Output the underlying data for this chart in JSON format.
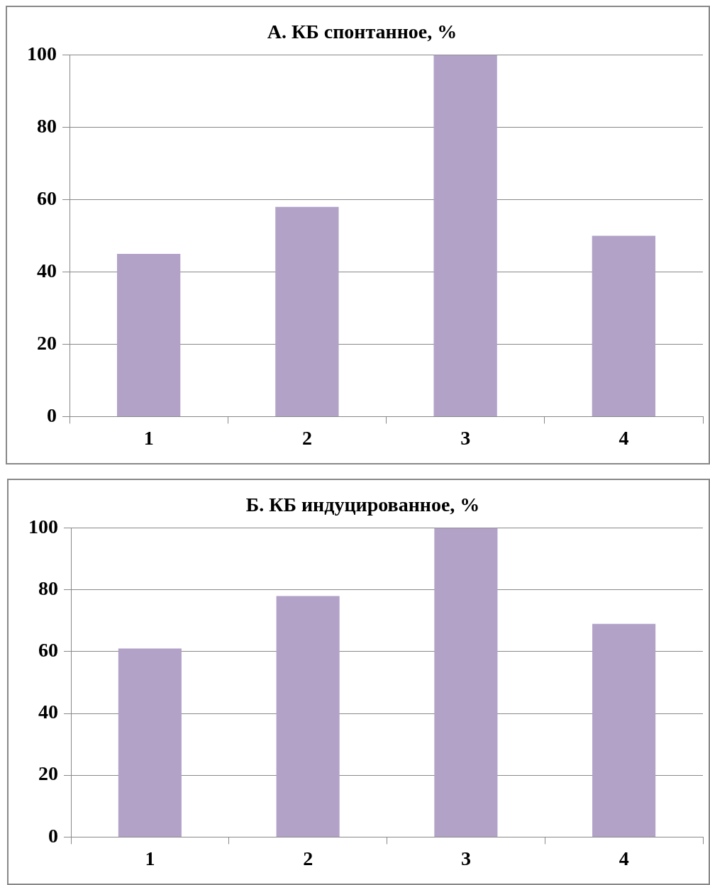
{
  "chart_data": [
    {
      "type": "bar",
      "title": "А. КБ спонтанное, %",
      "categories": [
        "1",
        "2",
        "3",
        "4"
      ],
      "values": [
        45,
        58,
        100,
        50
      ],
      "color": "#b2a2c8",
      "ylim": [
        0,
        100
      ],
      "yticks": [
        0,
        20,
        40,
        60,
        80,
        100
      ],
      "grid": "y"
    },
    {
      "type": "bar",
      "title": "Б. КБ индуцированное, %",
      "categories": [
        "1",
        "2",
        "3",
        "4"
      ],
      "values": [
        61,
        78,
        100,
        69
      ],
      "color": "#b2a2c8",
      "ylim": [
        0,
        100
      ],
      "yticks": [
        0,
        20,
        40,
        60,
        80,
        100
      ],
      "grid": "y"
    }
  ]
}
